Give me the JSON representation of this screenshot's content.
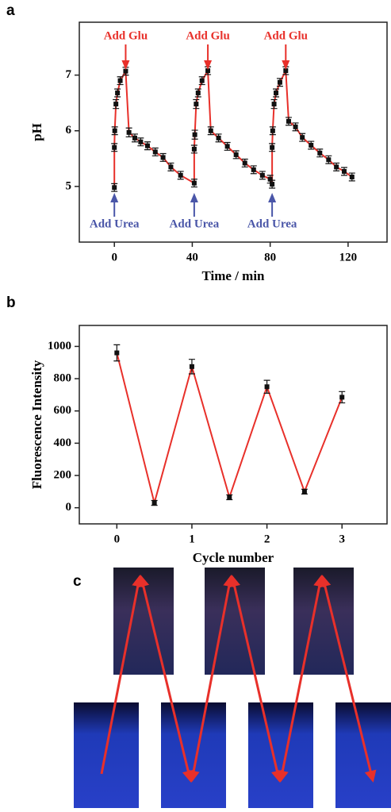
{
  "panels": [
    "a",
    "b",
    "c"
  ],
  "chart_data": [
    {
      "type": "line",
      "y_label": "pH",
      "x_label": "Time / min",
      "x": [
        0,
        0,
        0.2,
        0.8,
        1.6,
        3,
        5.8,
        7.5,
        10.5,
        13.5,
        17,
        21,
        25,
        29,
        34,
        41,
        41,
        41.3,
        42,
        43,
        45,
        48,
        49.5,
        53.5,
        58,
        62.5,
        67,
        71.5,
        76,
        80,
        81,
        81,
        81.3,
        82,
        83,
        85,
        88,
        89.5,
        93,
        96.5,
        101,
        105.5,
        110,
        114,
        118,
        122
      ],
      "values": [
        4.98,
        5.7,
        6.0,
        6.48,
        6.68,
        6.9,
        7.07,
        5.97,
        5.87,
        5.8,
        5.73,
        5.62,
        5.52,
        5.35,
        5.2,
        5.06,
        5.67,
        5.93,
        6.48,
        6.68,
        6.9,
        7.08,
        6.0,
        5.87,
        5.72,
        5.57,
        5.42,
        5.3,
        5.2,
        5.13,
        5.04,
        5.7,
        6.0,
        6.48,
        6.68,
        6.87,
        7.08,
        6.17,
        6.07,
        5.88,
        5.74,
        5.6,
        5.48,
        5.35,
        5.27,
        5.17
      ],
      "errors": [
        0.07,
        0.07,
        0.07,
        0.08,
        0.07,
        0.07,
        0.07,
        0.08,
        0.07,
        0.07,
        0.07,
        0.07,
        0.07,
        0.07,
        0.07,
        0.07,
        0.07,
        0.08,
        0.08,
        0.07,
        0.07,
        0.07,
        0.07,
        0.07,
        0.07,
        0.07,
        0.07,
        0.07,
        0.07,
        0.07,
        0.07,
        0.07,
        0.07,
        0.08,
        0.07,
        0.07,
        0.07,
        0.07,
        0.07,
        0.07,
        0.07,
        0.07,
        0.07,
        0.07,
        0.07,
        0.07
      ],
      "line_color": "#e8302a",
      "marker_color": "#111111",
      "xlim": [
        -18,
        140
      ],
      "ylim": [
        4.0,
        7.95
      ],
      "xticks": [
        0,
        40,
        80,
        120
      ],
      "yticks": [
        5,
        6,
        7
      ],
      "annotations": [
        {
          "text": "Add Glu",
          "x": 5.8,
          "color": "#e8302a",
          "side": "top"
        },
        {
          "text": "Add Glu",
          "x": 48,
          "color": "#e8302a",
          "side": "top"
        },
        {
          "text": "Add Glu",
          "x": 88,
          "color": "#e8302a",
          "side": "top"
        },
        {
          "text": "Add Urea",
          "x": 0,
          "color": "#4a56a8",
          "side": "bottom"
        },
        {
          "text": "Add Urea",
          "x": 41,
          "color": "#4a56a8",
          "side": "bottom"
        },
        {
          "text": "Add Urea",
          "x": 81,
          "color": "#4a56a8",
          "side": "bottom"
        }
      ]
    },
    {
      "type": "line",
      "y_label": "Fluorescence Intensity",
      "x_label": "Cycle number",
      "x": [
        0,
        0.5,
        1,
        1.5,
        2,
        2.5,
        3
      ],
      "values": [
        960,
        30,
        875,
        65,
        750,
        100,
        685
      ],
      "errors": [
        50,
        15,
        45,
        15,
        40,
        15,
        35
      ],
      "line_color": "#e8302a",
      "marker_color": "#111111",
      "xlim": [
        -0.5,
        3.6
      ],
      "ylim": [
        -100,
        1130
      ],
      "xticks": [
        0,
        1,
        2,
        3
      ],
      "yticks": [
        0,
        200,
        400,
        600,
        800,
        1000
      ]
    }
  ]
}
